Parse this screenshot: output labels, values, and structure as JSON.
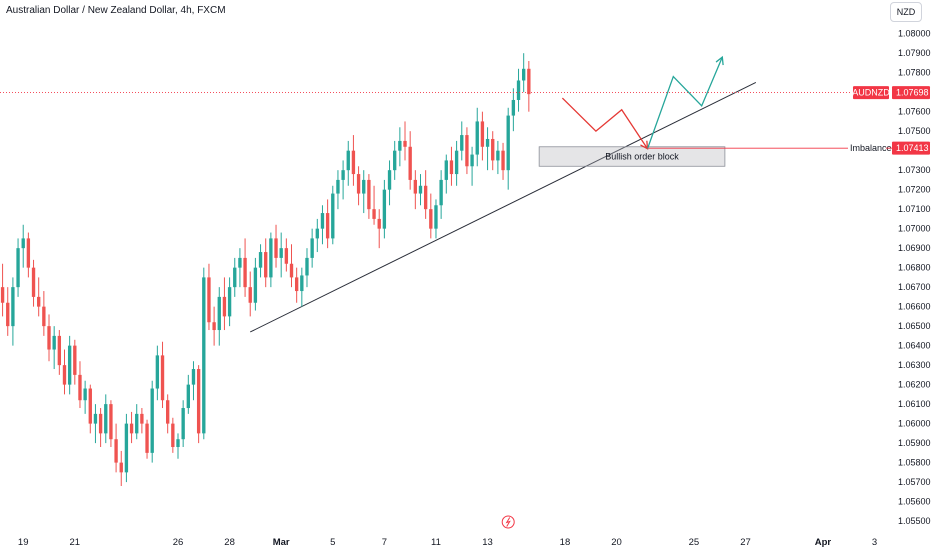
{
  "header": {
    "title": "Australian Dollar / New Zealand Dollar, 4h, FXCM",
    "currency": "NZD"
  },
  "colors": {
    "up": "#26a69a",
    "down": "#ef5350",
    "trendline": "#2a2e39",
    "price_line": "#f23645"
  },
  "chart_data": {
    "type": "candlestick",
    "symbol": "AUDNZD",
    "timeframe": "4h",
    "source": "FXCM",
    "y_ticks": [
      "1.08000",
      "1.07900",
      "1.07800",
      "1.07600",
      "1.07500",
      "1.07300",
      "1.07200",
      "1.07100",
      "1.07000",
      "1.06900",
      "1.06800",
      "1.06700",
      "1.06600",
      "1.06500",
      "1.06400",
      "1.06300",
      "1.06200",
      "1.06100",
      "1.06000",
      "1.05900",
      "1.05800",
      "1.05700",
      "1.05600",
      "1.05500"
    ],
    "y_range": [
      1.0548,
      1.0806
    ],
    "x_ticks": [
      {
        "label": "19",
        "bar": 4
      },
      {
        "label": "21",
        "bar": 14
      },
      {
        "label": "26",
        "bar": 34
      },
      {
        "label": "28",
        "bar": 44
      },
      {
        "label": "Mar",
        "bar": 54,
        "bold": true
      },
      {
        "label": "5",
        "bar": 64
      },
      {
        "label": "7",
        "bar": 74
      },
      {
        "label": "11",
        "bar": 84
      },
      {
        "label": "13",
        "bar": 94
      },
      {
        "label": "18",
        "bar": 109
      },
      {
        "label": "20",
        "bar": 119
      },
      {
        "label": "25",
        "bar": 134
      },
      {
        "label": "27",
        "bar": 144
      },
      {
        "label": "Apr",
        "bar": 159,
        "bold": true
      },
      {
        "label": "3",
        "bar": 169
      }
    ],
    "x_range": [
      -0.5,
      172
    ],
    "candles": [
      [
        1.067,
        1.0682,
        1.0655,
        1.0662
      ],
      [
        1.0662,
        1.067,
        1.0645,
        1.065
      ],
      [
        1.065,
        1.0675,
        1.064,
        1.067
      ],
      [
        1.067,
        1.0695,
        1.0665,
        1.069
      ],
      [
        1.069,
        1.0702,
        1.068,
        1.0695
      ],
      [
        1.0695,
        1.0698,
        1.0675,
        1.068
      ],
      [
        1.068,
        1.0684,
        1.066,
        1.0665
      ],
      [
        1.0665,
        1.0675,
        1.0655,
        1.066
      ],
      [
        1.066,
        1.0668,
        1.0645,
        1.065
      ],
      [
        1.065,
        1.0656,
        1.0632,
        1.0638
      ],
      [
        1.0638,
        1.065,
        1.0628,
        1.0645
      ],
      [
        1.0645,
        1.0648,
        1.0625,
        1.063
      ],
      [
        1.063,
        1.0638,
        1.0615,
        1.062
      ],
      [
        1.062,
        1.0645,
        1.0615,
        1.064
      ],
      [
        1.064,
        1.0643,
        1.062,
        1.0625
      ],
      [
        1.0625,
        1.0632,
        1.0608,
        1.0612
      ],
      [
        1.0612,
        1.0622,
        1.0605,
        1.0618
      ],
      [
        1.0618,
        1.062,
        1.0595,
        1.06
      ],
      [
        1.06,
        1.061,
        1.059,
        1.0605
      ],
      [
        1.0605,
        1.0608,
        1.0588,
        1.0595
      ],
      [
        1.0595,
        1.0615,
        1.059,
        1.061
      ],
      [
        1.061,
        1.0612,
        1.0588,
        1.0592
      ],
      [
        1.0592,
        1.06,
        1.0575,
        1.058
      ],
      [
        1.058,
        1.0586,
        1.0568,
        1.0575
      ],
      [
        1.0575,
        1.0605,
        1.057,
        1.06
      ],
      [
        1.06,
        1.0606,
        1.059,
        1.0595
      ],
      [
        1.0595,
        1.061,
        1.0592,
        1.0605
      ],
      [
        1.0605,
        1.0608,
        1.0595,
        1.06
      ],
      [
        1.06,
        1.0602,
        1.0582,
        1.0585
      ],
      [
        1.0585,
        1.0622,
        1.058,
        1.0618
      ],
      [
        1.0618,
        1.064,
        1.0612,
        1.0635
      ],
      [
        1.0635,
        1.0642,
        1.0608,
        1.0612
      ],
      [
        1.0612,
        1.0615,
        1.0595,
        1.06
      ],
      [
        1.06,
        1.0603,
        1.0585,
        1.0588
      ],
      [
        1.0588,
        1.0595,
        1.0582,
        1.0592
      ],
      [
        1.0592,
        1.0612,
        1.0588,
        1.0608
      ],
      [
        1.0608,
        1.0625,
        1.0605,
        1.062
      ],
      [
        1.062,
        1.0632,
        1.0612,
        1.0628
      ],
      [
        1.0628,
        1.063,
        1.059,
        1.0595
      ],
      [
        1.0595,
        1.068,
        1.0592,
        1.0675
      ],
      [
        1.0675,
        1.0682,
        1.0648,
        1.0652
      ],
      [
        1.0652,
        1.066,
        1.064,
        1.0648
      ],
      [
        1.0648,
        1.067,
        1.064,
        1.0665
      ],
      [
        1.0665,
        1.0675,
        1.0648,
        1.0655
      ],
      [
        1.0655,
        1.0675,
        1.065,
        1.067
      ],
      [
        1.067,
        1.0685,
        1.0665,
        1.068
      ],
      [
        1.068,
        1.069,
        1.067,
        1.0685
      ],
      [
        1.0685,
        1.0695,
        1.0665,
        1.067
      ],
      [
        1.067,
        1.0678,
        1.0655,
        1.0662
      ],
      [
        1.0662,
        1.0685,
        1.0658,
        1.068
      ],
      [
        1.068,
        1.0692,
        1.0675,
        1.0688
      ],
      [
        1.0688,
        1.0695,
        1.067,
        1.0675
      ],
      [
        1.0675,
        1.0698,
        1.067,
        1.0695
      ],
      [
        1.0695,
        1.0702,
        1.068,
        1.0685
      ],
      [
        1.0685,
        1.0698,
        1.0675,
        1.069
      ],
      [
        1.069,
        1.0695,
        1.0678,
        1.0682
      ],
      [
        1.0682,
        1.0692,
        1.067,
        1.0675
      ],
      [
        1.0675,
        1.068,
        1.0662,
        1.0668
      ],
      [
        1.0668,
        1.068,
        1.066,
        1.0676
      ],
      [
        1.0676,
        1.069,
        1.067,
        1.0685
      ],
      [
        1.0685,
        1.07,
        1.068,
        1.0695
      ],
      [
        1.0695,
        1.0705,
        1.0688,
        1.07
      ],
      [
        1.07,
        1.0712,
        1.0692,
        1.0708
      ],
      [
        1.0708,
        1.0715,
        1.069,
        1.0695
      ],
      [
        1.0695,
        1.0722,
        1.0692,
        1.0718
      ],
      [
        1.0718,
        1.073,
        1.071,
        1.0725
      ],
      [
        1.0725,
        1.0735,
        1.0715,
        1.073
      ],
      [
        1.073,
        1.0745,
        1.0722,
        1.074
      ],
      [
        1.074,
        1.0748,
        1.0722,
        1.0728
      ],
      [
        1.0728,
        1.0732,
        1.0712,
        1.0718
      ],
      [
        1.0718,
        1.073,
        1.0708,
        1.0725
      ],
      [
        1.0725,
        1.0728,
        1.0705,
        1.071
      ],
      [
        1.071,
        1.0722,
        1.0702,
        1.0705
      ],
      [
        1.0705,
        1.071,
        1.069,
        1.07
      ],
      [
        1.07,
        1.0725,
        1.0695,
        1.072
      ],
      [
        1.072,
        1.0735,
        1.0712,
        1.073
      ],
      [
        1.073,
        1.0745,
        1.0725,
        1.074
      ],
      [
        1.074,
        1.0752,
        1.0732,
        1.0745
      ],
      [
        1.0745,
        1.0755,
        1.0735,
        1.0742
      ],
      [
        1.0742,
        1.075,
        1.072,
        1.0725
      ],
      [
        1.0725,
        1.073,
        1.071,
        1.0718
      ],
      [
        1.0718,
        1.0728,
        1.0712,
        1.0722
      ],
      [
        1.0722,
        1.073,
        1.0705,
        1.071
      ],
      [
        1.071,
        1.0718,
        1.0695,
        1.07
      ],
      [
        1.07,
        1.0715,
        1.0695,
        1.0712
      ],
      [
        1.0712,
        1.073,
        1.0705,
        1.0725
      ],
      [
        1.0725,
        1.0738,
        1.0718,
        1.0735
      ],
      [
        1.0735,
        1.0742,
        1.0722,
        1.0728
      ],
      [
        1.0728,
        1.0745,
        1.0722,
        1.074
      ],
      [
        1.074,
        1.0755,
        1.0735,
        1.0748
      ],
      [
        1.0748,
        1.0752,
        1.0728,
        1.0732
      ],
      [
        1.0732,
        1.0742,
        1.0722,
        1.0738
      ],
      [
        1.0738,
        1.0762,
        1.0732,
        1.0755
      ],
      [
        1.0755,
        1.076,
        1.0735,
        1.0742
      ],
      [
        1.0742,
        1.0752,
        1.073,
        1.0746
      ],
      [
        1.0746,
        1.075,
        1.073,
        1.0735
      ],
      [
        1.0735,
        1.0745,
        1.0728,
        1.074
      ],
      [
        1.074,
        1.0744,
        1.0725,
        1.073
      ],
      [
        1.073,
        1.0762,
        1.072,
        1.0758
      ],
      [
        1.0758,
        1.0772,
        1.075,
        1.0766
      ],
      [
        1.0766,
        1.0782,
        1.076,
        1.0776
      ],
      [
        1.0776,
        1.079,
        1.077,
        1.0782
      ],
      [
        1.0782,
        1.0786,
        1.076,
        1.0769
      ]
    ],
    "trendline": {
      "from": {
        "bar": 48,
        "price": 1.0647
      },
      "to": {
        "bar": 146,
        "price": 1.0775
      }
    },
    "projection_red": [
      {
        "bar": 108.5,
        "price": 1.0767
      },
      {
        "bar": 115,
        "price": 1.075
      },
      {
        "bar": 120,
        "price": 1.0761
      },
      {
        "bar": 125,
        "price": 1.0741
      }
    ],
    "projection_green": [
      {
        "bar": 125,
        "price": 1.0741
      },
      {
        "bar": 130,
        "price": 1.0778
      },
      {
        "bar": 135.5,
        "price": 1.0763
      },
      {
        "bar": 139.5,
        "price": 1.0788
      }
    ],
    "order_block": {
      "label": "Bullish order block",
      "from_bar": 104,
      "to_bar": 140,
      "top": 1.0742,
      "bottom": 1.0732
    },
    "current_price": {
      "symbol": "AUDNZD",
      "value": "1.07698",
      "price": 1.07698
    },
    "imbalance": {
      "label": "Imbalance",
      "value": "1.07413",
      "price": 1.07413,
      "from_bar": 125
    }
  }
}
